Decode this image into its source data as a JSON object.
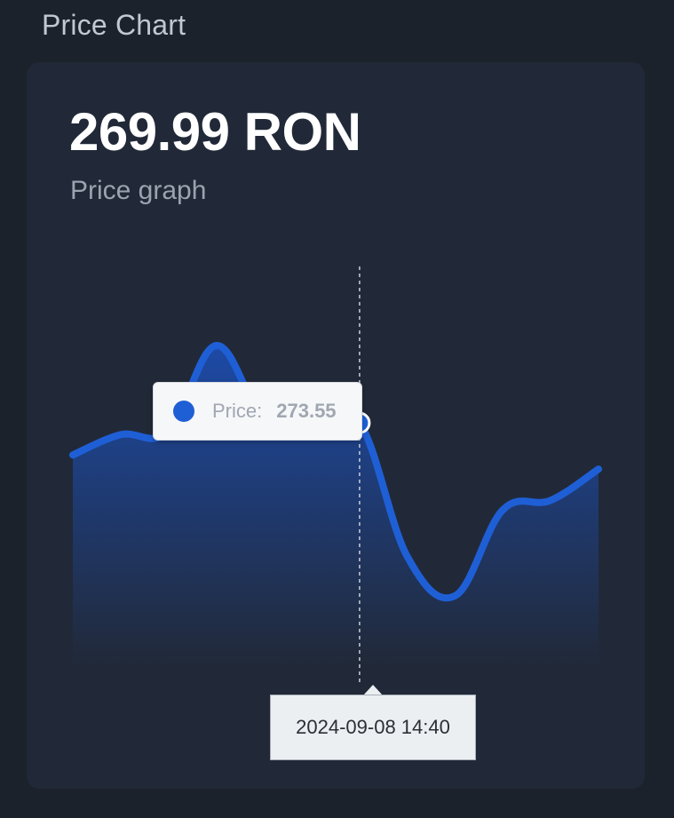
{
  "section_title": "Price Chart",
  "card": {
    "price": "269.99 RON",
    "subtitle": "Price graph"
  },
  "tooltip": {
    "label": "Price:",
    "value": "273.55",
    "time": "2024-09-08 14:40"
  },
  "colors": {
    "line": "#1f5fd6",
    "area_top": "#1d4aa6",
    "area_bottom": "#212938",
    "background": "#1c222b",
    "card": "#212938"
  },
  "chart_data": {
    "type": "area",
    "title": "",
    "xlabel": "",
    "ylabel": "",
    "values": [
      271.5,
      272.8,
      273.0,
      278.5,
      273.8,
      273.6,
      273.55,
      265.0,
      262.5,
      268.0,
      268.6,
      270.6
    ],
    "ylim": [
      258,
      281
    ],
    "highlight_index": 6,
    "grid": false,
    "axes_visible": false
  }
}
